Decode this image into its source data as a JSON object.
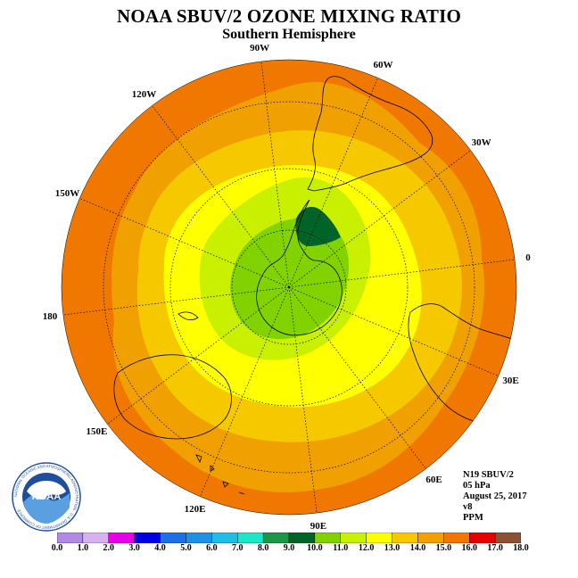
{
  "header": {
    "title": "NOAA SBUV/2 OZONE MIXING RATIO",
    "subtitle": "Southern Hemisphere"
  },
  "map": {
    "projection": "polar stereographic, South Pole centered",
    "longitude_labels": [
      "90W",
      "60W",
      "30W",
      "0",
      "30E",
      "60E",
      "90E",
      "120E",
      "150E",
      "180",
      "150W",
      "120W"
    ],
    "grid": true,
    "coastlines": true,
    "field_description": "Ozone mixing ratio increasing outward from the pole: green/yellow-green core (~9-12 PPM) near Antarctica, yellow ring (~12-13 PPM), amber/orange bands (~13-16 PPM) toward the equatorward edge; a dark-green maximum-depletion patch (~9-10 PPM) near the Antarctic Peninsula."
  },
  "info": {
    "satellite": "N19 SBUV/2",
    "level": "05 hPa",
    "date": "August 25, 2017",
    "version": "v8",
    "units": "PPM"
  },
  "colorbar": {
    "ticks": [
      "0.0",
      "1.0",
      "2.0",
      "3.0",
      "4.0",
      "5.0",
      "6.0",
      "7.0",
      "8.0",
      "9.0",
      "10.0",
      "11.0",
      "12.0",
      "13.0",
      "14.0",
      "15.0",
      "16.0",
      "17.0",
      "18.0"
    ],
    "colors": [
      "#b28ae6",
      "#d8b2f0",
      "#e600e6",
      "#0000e6",
      "#1e6ee6",
      "#1e90e6",
      "#1ebee6",
      "#1ee6c8",
      "#1e9646",
      "#006428",
      "#82d200",
      "#c8f000",
      "#ffff00",
      "#f5c800",
      "#f0a000",
      "#f07800",
      "#e60000",
      "#8c5032"
    ]
  },
  "logo": {
    "text": "NOAA",
    "ring_text": "NATIONAL OCEANIC AND ATMOSPHERIC ADMINISTRATION · U.S. DEPARTMENT OF COMMERCE"
  }
}
